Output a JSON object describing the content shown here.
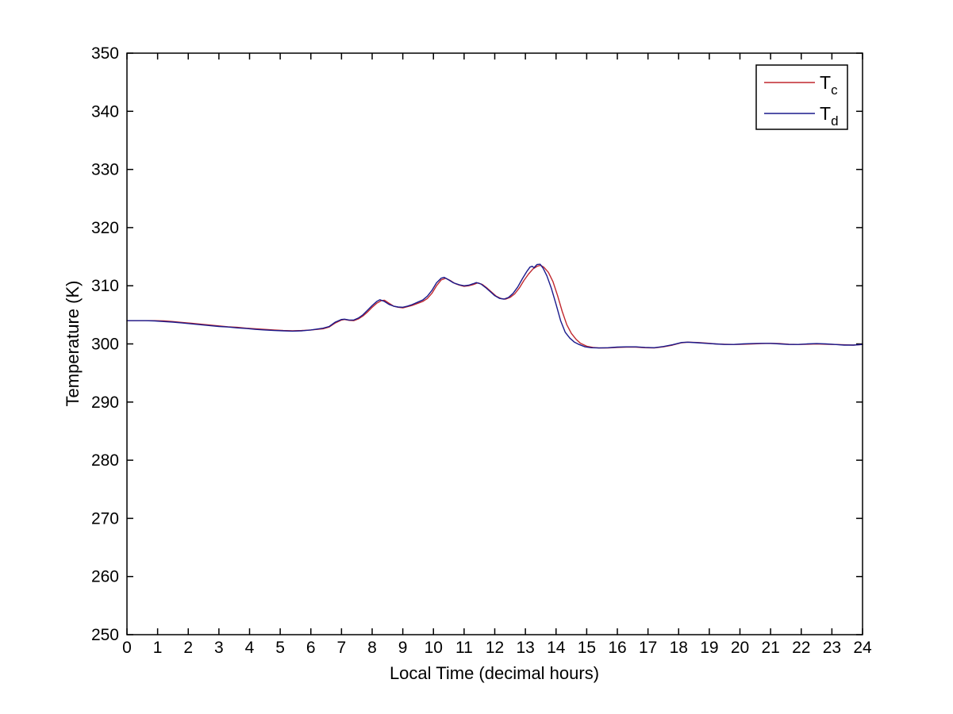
{
  "chart_data": {
    "type": "line",
    "title": "",
    "xlabel": "Local Time (decimal hours)",
    "ylabel": "Temperature (K)",
    "xlim": [
      0,
      24
    ],
    "ylim": [
      250,
      350
    ],
    "xticks": [
      0,
      1,
      2,
      3,
      4,
      5,
      6,
      7,
      8,
      9,
      10,
      11,
      12,
      13,
      14,
      15,
      16,
      17,
      18,
      19,
      20,
      21,
      22,
      23,
      24
    ],
    "yticks": [
      250,
      260,
      270,
      280,
      290,
      300,
      310,
      320,
      330,
      340,
      350
    ],
    "grid": false,
    "box": true,
    "tick_direction": "in",
    "legend_position": "top-right",
    "background_color": "#ffffff",
    "axis_color": "#000000",
    "series": [
      {
        "name": "T_c",
        "label_main": "T",
        "label_sub": "c",
        "color": "#c0272d",
        "points": [
          [
            0,
            304.0
          ],
          [
            0.3,
            304.0
          ],
          [
            0.6,
            304.0
          ],
          [
            0.9,
            304.0
          ],
          [
            1.2,
            303.95
          ],
          [
            1.5,
            303.85
          ],
          [
            1.8,
            303.7
          ],
          [
            2.1,
            303.55
          ],
          [
            2.4,
            303.4
          ],
          [
            2.7,
            303.25
          ],
          [
            3.0,
            303.1
          ],
          [
            3.3,
            302.95
          ],
          [
            3.6,
            302.85
          ],
          [
            3.9,
            302.7
          ],
          [
            4.2,
            302.6
          ],
          [
            4.5,
            302.5
          ],
          [
            4.8,
            302.4
          ],
          [
            5.1,
            302.3
          ],
          [
            5.4,
            302.25
          ],
          [
            5.7,
            302.3
          ],
          [
            6.0,
            302.4
          ],
          [
            6.2,
            302.5
          ],
          [
            6.4,
            302.6
          ],
          [
            6.6,
            302.9
          ],
          [
            6.8,
            303.6
          ],
          [
            7.0,
            304.1
          ],
          [
            7.1,
            304.2
          ],
          [
            7.25,
            304.05
          ],
          [
            7.4,
            304.0
          ],
          [
            7.55,
            304.3
          ],
          [
            7.7,
            304.8
          ],
          [
            7.85,
            305.5
          ],
          [
            8.0,
            306.3
          ],
          [
            8.15,
            307.0
          ],
          [
            8.3,
            307.45
          ],
          [
            8.4,
            307.5
          ],
          [
            8.55,
            307.0
          ],
          [
            8.7,
            306.5
          ],
          [
            8.85,
            306.3
          ],
          [
            9.0,
            306.2
          ],
          [
            9.15,
            306.4
          ],
          [
            9.3,
            306.6
          ],
          [
            9.5,
            307.0
          ],
          [
            9.65,
            307.3
          ],
          [
            9.8,
            307.8
          ],
          [
            9.95,
            308.7
          ],
          [
            10.1,
            310.0
          ],
          [
            10.25,
            311.0
          ],
          [
            10.4,
            311.3
          ],
          [
            10.55,
            310.9
          ],
          [
            10.7,
            310.4
          ],
          [
            10.85,
            310.1
          ],
          [
            11.0,
            309.9
          ],
          [
            11.15,
            310.0
          ],
          [
            11.3,
            310.2
          ],
          [
            11.45,
            310.5
          ],
          [
            11.6,
            310.2
          ],
          [
            11.75,
            309.6
          ],
          [
            11.9,
            308.9
          ],
          [
            12.05,
            308.2
          ],
          [
            12.2,
            307.8
          ],
          [
            12.35,
            307.7
          ],
          [
            12.5,
            308.0
          ],
          [
            12.65,
            308.6
          ],
          [
            12.8,
            309.6
          ],
          [
            12.95,
            310.9
          ],
          [
            13.1,
            312.0
          ],
          [
            13.25,
            312.9
          ],
          [
            13.4,
            313.4
          ],
          [
            13.5,
            313.5
          ],
          [
            13.6,
            313.2
          ],
          [
            13.75,
            312.3
          ],
          [
            13.9,
            310.7
          ],
          [
            14.05,
            308.3
          ],
          [
            14.2,
            305.6
          ],
          [
            14.35,
            303.3
          ],
          [
            14.5,
            301.8
          ],
          [
            14.65,
            300.8
          ],
          [
            14.8,
            300.1
          ],
          [
            15.0,
            299.6
          ],
          [
            15.2,
            299.4
          ],
          [
            15.4,
            299.3
          ],
          [
            15.7,
            299.3
          ],
          [
            16.0,
            299.4
          ],
          [
            16.3,
            299.45
          ],
          [
            16.6,
            299.45
          ],
          [
            16.9,
            299.35
          ],
          [
            17.2,
            299.3
          ],
          [
            17.5,
            299.5
          ],
          [
            17.8,
            299.8
          ],
          [
            18.1,
            300.2
          ],
          [
            18.3,
            300.3
          ],
          [
            18.6,
            300.25
          ],
          [
            18.9,
            300.15
          ],
          [
            19.2,
            300.0
          ],
          [
            19.5,
            299.95
          ],
          [
            19.8,
            299.9
          ],
          [
            20.1,
            299.95
          ],
          [
            20.4,
            300.0
          ],
          [
            20.7,
            300.05
          ],
          [
            21.0,
            300.1
          ],
          [
            21.3,
            300.05
          ],
          [
            21.6,
            299.95
          ],
          [
            21.9,
            299.9
          ],
          [
            22.2,
            299.95
          ],
          [
            22.5,
            300.0
          ],
          [
            22.8,
            299.95
          ],
          [
            23.1,
            299.9
          ],
          [
            23.4,
            299.85
          ],
          [
            23.7,
            299.8
          ],
          [
            24.0,
            299.9
          ]
        ]
      },
      {
        "name": "T_d",
        "label_main": "T",
        "label_sub": "d",
        "color": "#1a1a8c",
        "points": [
          [
            0,
            304.0
          ],
          [
            0.3,
            304.0
          ],
          [
            0.6,
            304.0
          ],
          [
            0.9,
            303.95
          ],
          [
            1.2,
            303.85
          ],
          [
            1.5,
            303.75
          ],
          [
            1.8,
            303.6
          ],
          [
            2.1,
            303.45
          ],
          [
            2.4,
            303.3
          ],
          [
            2.7,
            303.15
          ],
          [
            3.0,
            303.0
          ],
          [
            3.3,
            302.9
          ],
          [
            3.6,
            302.75
          ],
          [
            3.9,
            302.65
          ],
          [
            4.2,
            302.5
          ],
          [
            4.5,
            302.4
          ],
          [
            4.8,
            302.3
          ],
          [
            5.1,
            302.25
          ],
          [
            5.4,
            302.2
          ],
          [
            5.7,
            302.25
          ],
          [
            6.0,
            302.4
          ],
          [
            6.2,
            302.55
          ],
          [
            6.4,
            302.7
          ],
          [
            6.6,
            303.0
          ],
          [
            6.8,
            303.75
          ],
          [
            7.0,
            304.2
          ],
          [
            7.1,
            304.25
          ],
          [
            7.25,
            304.1
          ],
          [
            7.4,
            304.1
          ],
          [
            7.55,
            304.45
          ],
          [
            7.7,
            305.0
          ],
          [
            7.85,
            305.8
          ],
          [
            8.0,
            306.6
          ],
          [
            8.15,
            307.3
          ],
          [
            8.25,
            307.6
          ],
          [
            8.4,
            307.3
          ],
          [
            8.55,
            306.8
          ],
          [
            8.7,
            306.5
          ],
          [
            8.85,
            306.35
          ],
          [
            9.0,
            306.3
          ],
          [
            9.15,
            306.5
          ],
          [
            9.3,
            306.75
          ],
          [
            9.5,
            307.2
          ],
          [
            9.65,
            307.55
          ],
          [
            9.8,
            308.2
          ],
          [
            9.95,
            309.2
          ],
          [
            10.1,
            310.5
          ],
          [
            10.25,
            311.3
          ],
          [
            10.35,
            311.45
          ],
          [
            10.5,
            311.0
          ],
          [
            10.65,
            310.5
          ],
          [
            10.85,
            310.15
          ],
          [
            11.0,
            310.0
          ],
          [
            11.15,
            310.1
          ],
          [
            11.3,
            310.35
          ],
          [
            11.4,
            310.55
          ],
          [
            11.55,
            310.3
          ],
          [
            11.7,
            309.7
          ],
          [
            11.85,
            309.0
          ],
          [
            12.0,
            308.3
          ],
          [
            12.15,
            307.85
          ],
          [
            12.3,
            307.7
          ],
          [
            12.45,
            308.0
          ],
          [
            12.6,
            308.7
          ],
          [
            12.75,
            309.8
          ],
          [
            12.9,
            311.2
          ],
          [
            13.05,
            312.5
          ],
          [
            13.15,
            313.2
          ],
          [
            13.22,
            313.35
          ],
          [
            13.28,
            313.1
          ],
          [
            13.38,
            313.65
          ],
          [
            13.48,
            313.7
          ],
          [
            13.58,
            313.0
          ],
          [
            13.7,
            311.7
          ],
          [
            13.85,
            309.5
          ],
          [
            14.0,
            306.8
          ],
          [
            14.15,
            304.0
          ],
          [
            14.3,
            302.0
          ],
          [
            14.45,
            301.0
          ],
          [
            14.6,
            300.3
          ],
          [
            14.75,
            299.9
          ],
          [
            14.95,
            299.5
          ],
          [
            15.15,
            299.35
          ],
          [
            15.4,
            299.3
          ],
          [
            15.7,
            299.35
          ],
          [
            16.0,
            299.45
          ],
          [
            16.3,
            299.5
          ],
          [
            16.6,
            299.5
          ],
          [
            16.9,
            299.4
          ],
          [
            17.2,
            299.35
          ],
          [
            17.5,
            299.55
          ],
          [
            17.8,
            299.85
          ],
          [
            18.1,
            300.25
          ],
          [
            18.3,
            300.3
          ],
          [
            18.6,
            300.2
          ],
          [
            18.9,
            300.1
          ],
          [
            19.2,
            300.0
          ],
          [
            19.5,
            299.9
          ],
          [
            19.8,
            299.9
          ],
          [
            20.1,
            300.0
          ],
          [
            20.4,
            300.05
          ],
          [
            20.7,
            300.1
          ],
          [
            21.0,
            300.1
          ],
          [
            21.3,
            300.0
          ],
          [
            21.6,
            299.9
          ],
          [
            21.9,
            299.9
          ],
          [
            22.2,
            300.0
          ],
          [
            22.5,
            300.05
          ],
          [
            22.8,
            300.0
          ],
          [
            23.1,
            299.9
          ],
          [
            23.4,
            299.8
          ],
          [
            23.7,
            299.8
          ],
          [
            24.0,
            299.9
          ]
        ]
      }
    ]
  }
}
